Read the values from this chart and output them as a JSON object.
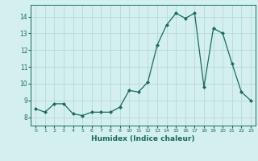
{
  "x": [
    0,
    1,
    2,
    3,
    4,
    5,
    6,
    7,
    8,
    9,
    10,
    11,
    12,
    13,
    14,
    15,
    16,
    17,
    18,
    19,
    20,
    21,
    22,
    23
  ],
  "y": [
    8.5,
    8.3,
    8.8,
    8.8,
    8.2,
    8.1,
    8.3,
    8.3,
    8.3,
    8.6,
    9.6,
    9.5,
    10.1,
    12.3,
    13.5,
    14.2,
    13.9,
    14.2,
    9.8,
    13.3,
    13.0,
    11.2,
    9.5,
    9.0
  ],
  "xlabel": "Humidex (Indice chaleur)",
  "xlim": [
    -0.5,
    23.5
  ],
  "ylim": [
    7.5,
    14.7
  ],
  "yticks": [
    8,
    9,
    10,
    11,
    12,
    13,
    14
  ],
  "xticks": [
    0,
    1,
    2,
    3,
    4,
    5,
    6,
    7,
    8,
    9,
    10,
    11,
    12,
    13,
    14,
    15,
    16,
    17,
    18,
    19,
    20,
    21,
    22,
    23
  ],
  "line_color": "#1a6b5a",
  "bg_color": "#d4efef",
  "grid_color": "#b8d8d8",
  "tick_color": "#1a6b5a",
  "label_color": "#1a6b5a",
  "marker": "D",
  "markersize": 2,
  "linewidth": 0.9
}
